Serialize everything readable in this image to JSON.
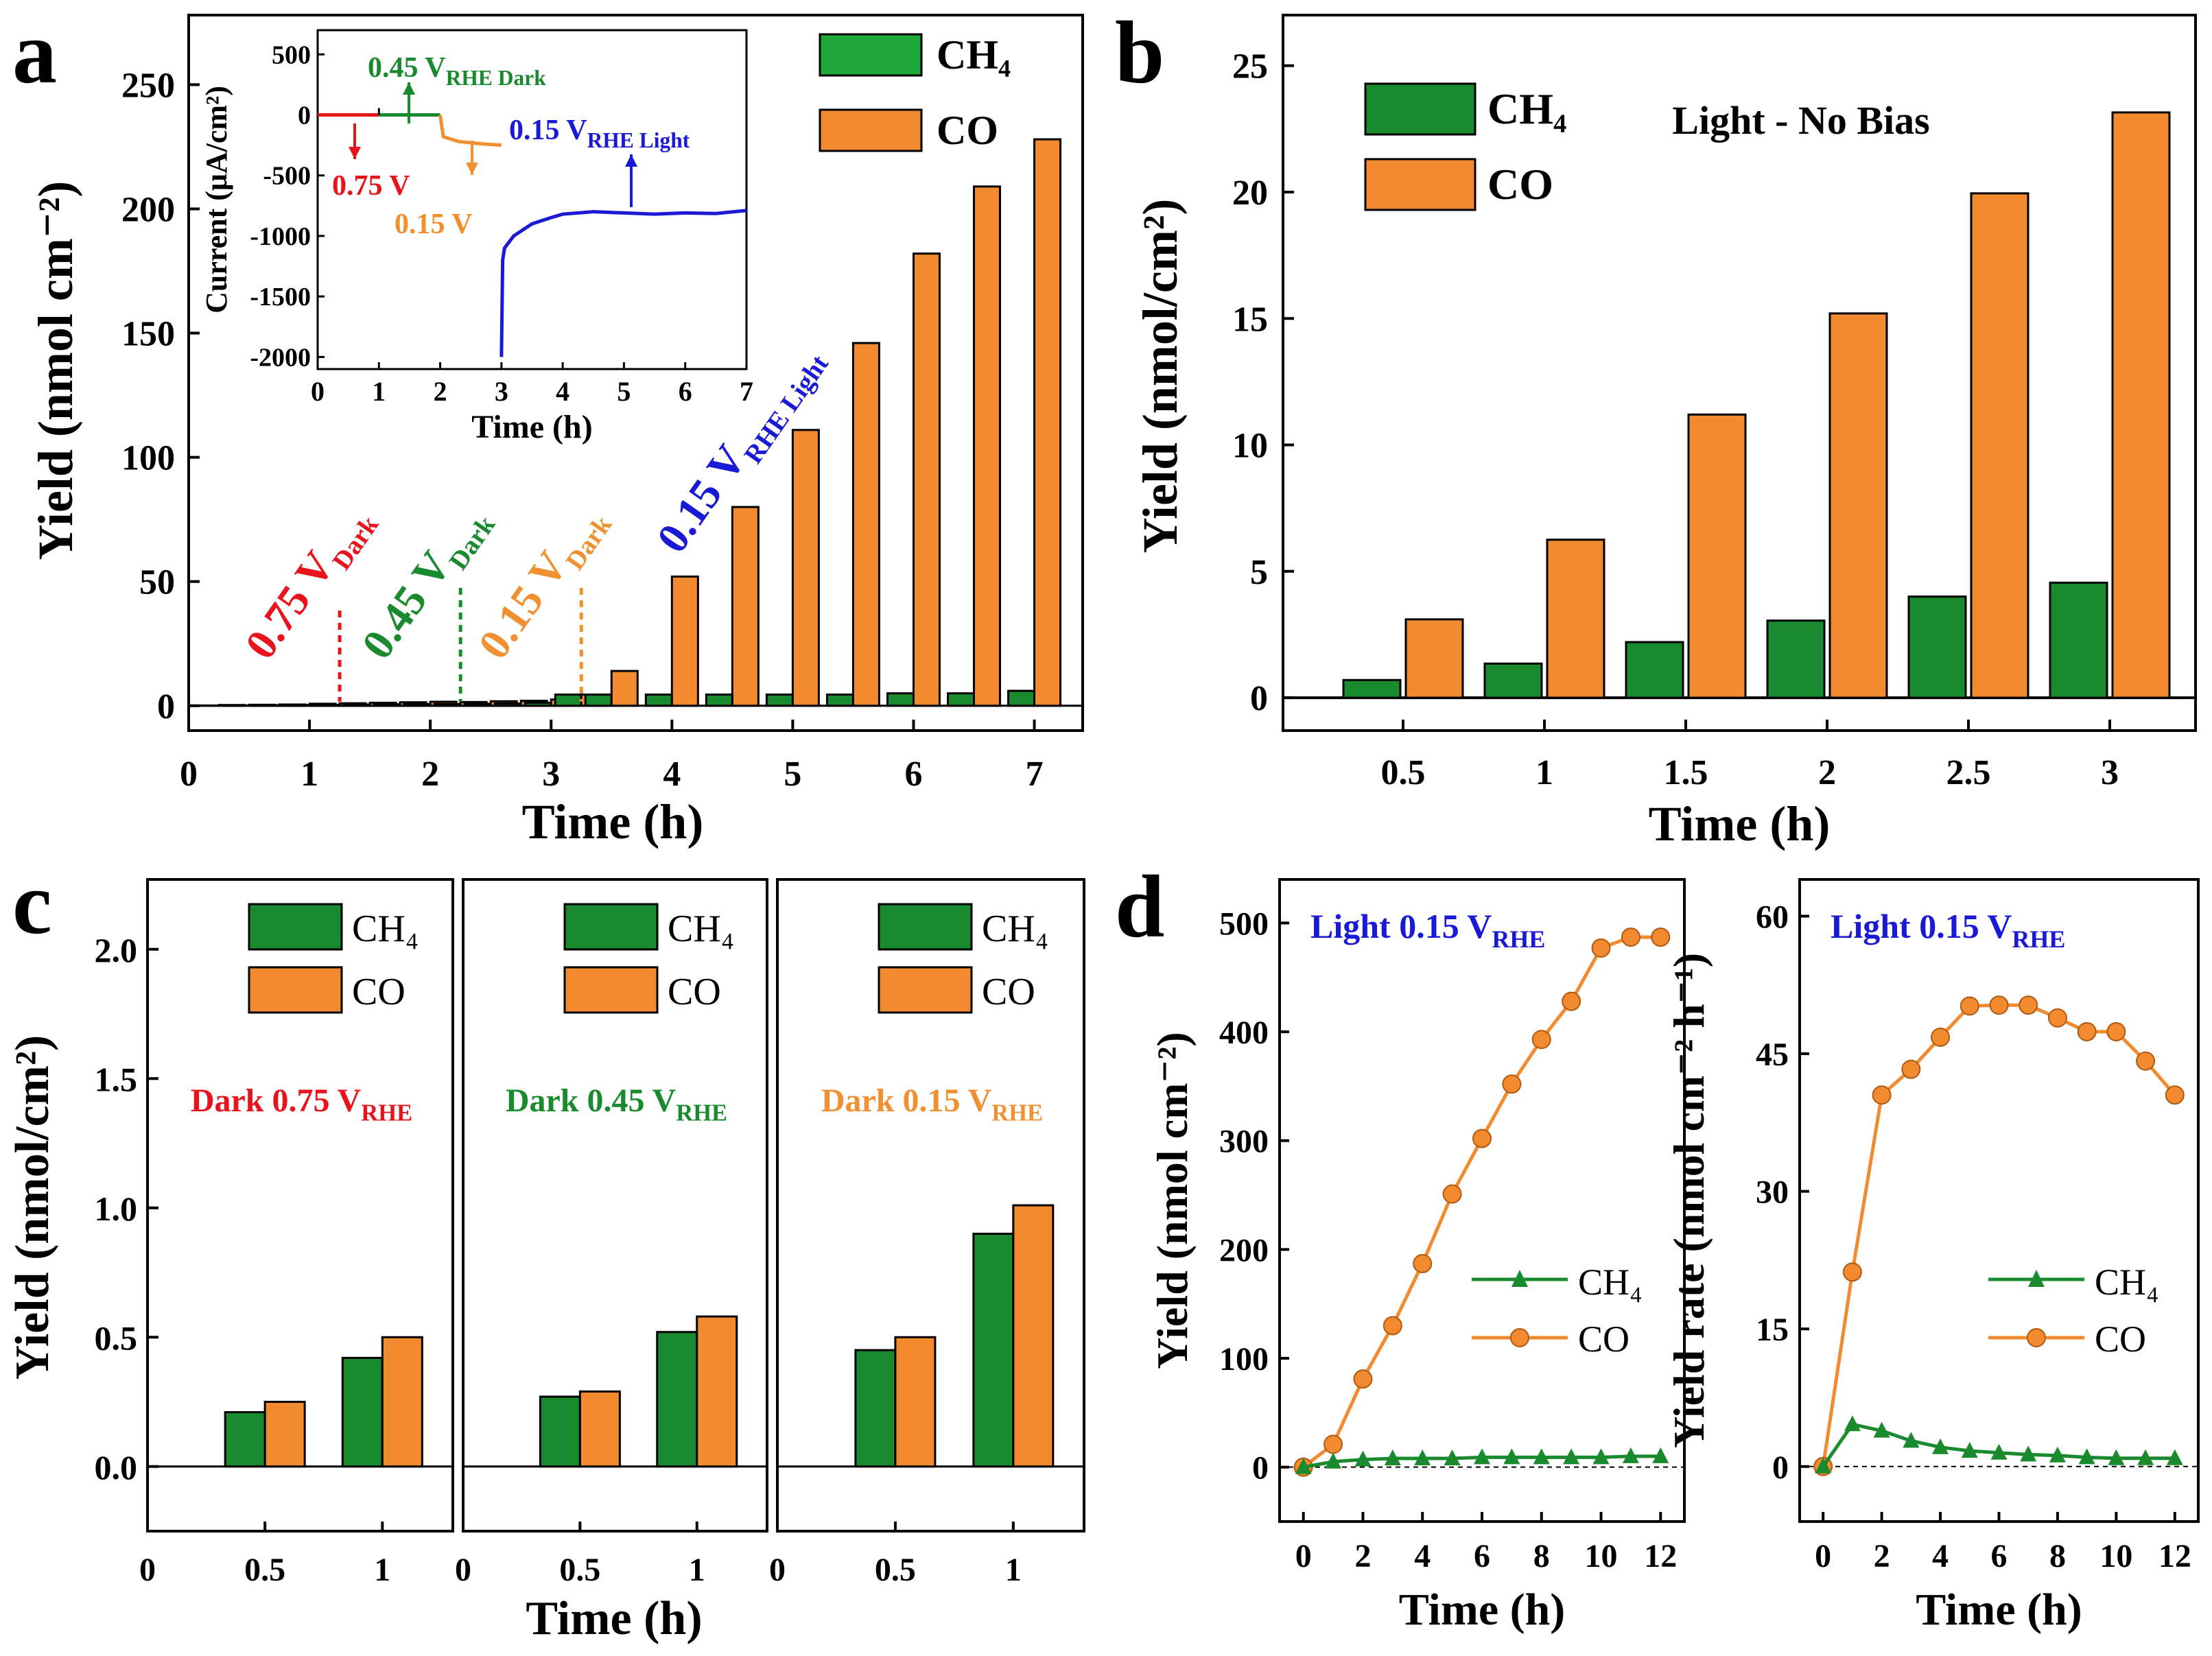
{
  "figure": {
    "panel_labels": [
      "a",
      "b",
      "c",
      "d"
    ]
  },
  "colors": {
    "ch4": "#1a8a2e",
    "ch4_legend": "#1fa83a",
    "co": "#f28a30",
    "red": "#e8141c",
    "green": "#1a8a2e",
    "orange": "#f09030",
    "blue": "#1a1ad6",
    "axis": "#000000"
  },
  "chart_data": [
    {
      "id": "a",
      "type": "bar",
      "title": "",
      "xlabel": "Time (h)",
      "ylabel": "Yield (nmol cm⁻²)",
      "xlim": [
        0,
        7.4
      ],
      "ylim": [
        -10,
        278
      ],
      "xticks": [
        0,
        1,
        2,
        3,
        4,
        5,
        6,
        7
      ],
      "yticks": [
        0,
        50,
        100,
        150,
        200,
        250
      ],
      "legend": [
        "CH₄",
        "CO"
      ],
      "x": [
        0.25,
        0.5,
        0.75,
        1.0,
        1.25,
        1.5,
        1.75,
        2.0,
        2.25,
        2.5,
        2.75,
        3.0,
        3.25,
        3.5,
        4.0,
        4.5,
        5.0,
        5.5,
        6.0,
        6.5,
        7.0
      ],
      "series": [
        {
          "name": "CH₄",
          "values": [
            0.1,
            0.1,
            0.2,
            0.3,
            0.4,
            0.5,
            0.6,
            0.7,
            0.7,
            0.8,
            0.9,
            1.2,
            4.5,
            4.5,
            4.5,
            4.5,
            4.5,
            4.5,
            5,
            5,
            6
          ]
        },
        {
          "name": "CO",
          "values": [
            0.3,
            0.4,
            0.5,
            0.8,
            1.0,
            1.2,
            1.4,
            1.6,
            1.5,
            1.8,
            2.0,
            2.5,
            4.5,
            14,
            52,
            80,
            111,
            146,
            182,
            209,
            228
          ]
        }
      ],
      "annotations": [
        "0.75 V Dark",
        "0.45 V Dark",
        "0.15 V Dark",
        "0.15 V RHE Light"
      ],
      "inset": {
        "type": "line",
        "xlabel": "Time (h)",
        "ylabel": "Current (μA/cm²)",
        "xlim": [
          0,
          7
        ],
        "ylim": [
          -2100,
          700
        ],
        "xticks": [
          0,
          1,
          2,
          3,
          4,
          5,
          6,
          7
        ],
        "yticks": [
          500,
          0,
          -500,
          -1000,
          -1500,
          -2000
        ],
        "segments": [
          {
            "label": "0.75 V",
            "x": [
              0,
              1
            ],
            "y": [
              0,
              0
            ]
          },
          {
            "label": "0.45 V RHE Dark",
            "x": [
              1,
              2
            ],
            "y": [
              0,
              0
            ]
          },
          {
            "label": "0.15 V",
            "x": [
              2,
              2.05,
              2.3,
              2.7,
              3
            ],
            "y": [
              0,
              -180,
              -220,
              -240,
              -250
            ]
          },
          {
            "label": "0.15 V RHE Light",
            "x": [
              3,
              3.02,
              3.05,
              3.2,
              3.5,
              3.8,
              4,
              4.5,
              5,
              5.5,
              6,
              6.5,
              7
            ],
            "y": [
              -2000,
              -1200,
              -1100,
              -1000,
              -900,
              -850,
              -820,
              -800,
              -810,
              -820,
              -810,
              -815,
              -790
            ]
          }
        ]
      }
    },
    {
      "id": "b",
      "type": "bar",
      "title": "Light - No Bias",
      "xlabel": "Time (h)",
      "ylabel": "Yield (nmol/cm²)",
      "ylim": [
        -1.3,
        27
      ],
      "yticks": [
        0,
        5,
        10,
        15,
        20,
        25
      ],
      "categories": [
        "0.5",
        "1",
        "1.5",
        "2",
        "2.5",
        "3"
      ],
      "legend": [
        "CH₄",
        "CO"
      ],
      "series": [
        {
          "name": "CH₄",
          "values": [
            0.7,
            1.35,
            2.2,
            3.05,
            4.0,
            4.55
          ]
        },
        {
          "name": "CO",
          "values": [
            3.1,
            6.25,
            11.2,
            15.2,
            19.95,
            23.15
          ]
        }
      ]
    },
    {
      "id": "c",
      "type": "bar",
      "xlabel": "Time (h)",
      "ylabel": "Yield (nmol/cm²)",
      "ylim": [
        -0.25,
        2.27
      ],
      "yticks": [
        0.0,
        0.5,
        1.0,
        1.5,
        2.0
      ],
      "xticks": [
        "0",
        "0.5",
        "1"
      ],
      "legend": [
        "CH₄",
        "CO"
      ],
      "subplots": [
        {
          "title": "Dark 0.75 V",
          "title_sub": "RHE",
          "categories": [
            "0.5",
            "1"
          ],
          "series": [
            {
              "name": "CH₄",
              "values": [
                0.21,
                0.42
              ]
            },
            {
              "name": "CO",
              "values": [
                0.25,
                0.5
              ]
            }
          ]
        },
        {
          "title": "Dark 0.45 V",
          "title_sub": "RHE",
          "categories": [
            "0.5",
            "1"
          ],
          "series": [
            {
              "name": "CH₄",
              "values": [
                0.27,
                0.52
              ]
            },
            {
              "name": "CO",
              "values": [
                0.29,
                0.58
              ]
            }
          ]
        },
        {
          "title": "Dark 0.15 V",
          "title_sub": "RHE",
          "categories": [
            "0.5",
            "1"
          ],
          "series": [
            {
              "name": "CH₄",
              "values": [
                0.45,
                0.9
              ]
            },
            {
              "name": "CO",
              "values": [
                0.5,
                1.01
              ]
            }
          ]
        }
      ]
    },
    {
      "id": "d",
      "type": "line",
      "subplots": [
        {
          "title": "Light 0.15 V",
          "title_sub": "RHE",
          "xlabel": "Time (h)",
          "ylabel": "Yield (nmol cm⁻²)",
          "xlim": [
            -0.8,
            12.8
          ],
          "ylim": [
            -50,
            540
          ],
          "xticks": [
            0,
            2,
            4,
            6,
            8,
            10,
            12
          ],
          "yticks": [
            0,
            100,
            200,
            300,
            400,
            500
          ],
          "x": [
            0,
            1,
            2,
            3,
            4,
            5,
            6,
            7,
            8,
            9,
            10,
            11,
            12
          ],
          "series": [
            {
              "name": "CH₄",
              "values": [
                0,
                5,
                7,
                8,
                8,
                8,
                9,
                9,
                9,
                9,
                9,
                10,
                10
              ]
            },
            {
              "name": "CO",
              "values": [
                0,
                21,
                81,
                130,
                187,
                251,
                302,
                352,
                393,
                428,
                477,
                487,
                487
              ]
            }
          ]
        },
        {
          "title": "Light 0.15 V",
          "title_sub": "RHE",
          "xlabel": "Time (h)",
          "ylabel": "Yield rate (nmol cm⁻² h⁻¹)",
          "xlim": [
            -0.8,
            12.8
          ],
          "ylim": [
            -6,
            64
          ],
          "xticks": [
            0,
            2,
            4,
            6,
            8,
            10,
            12
          ],
          "yticks": [
            0,
            15,
            30,
            45,
            60
          ],
          "x": [
            0,
            1,
            2,
            3,
            4,
            5,
            6,
            7,
            8,
            9,
            10,
            11,
            12
          ],
          "series": [
            {
              "name": "CH₄",
              "values": [
                0,
                4.6,
                3.9,
                2.8,
                2.1,
                1.7,
                1.5,
                1.3,
                1.2,
                1.0,
                0.9,
                0.9,
                0.9
              ]
            },
            {
              "name": "CO",
              "values": [
                0,
                21.2,
                40.5,
                43.3,
                46.8,
                50.2,
                50.3,
                50.3,
                48.9,
                47.4,
                47.4,
                44.2,
                40.5
              ]
            }
          ]
        }
      ]
    }
  ]
}
